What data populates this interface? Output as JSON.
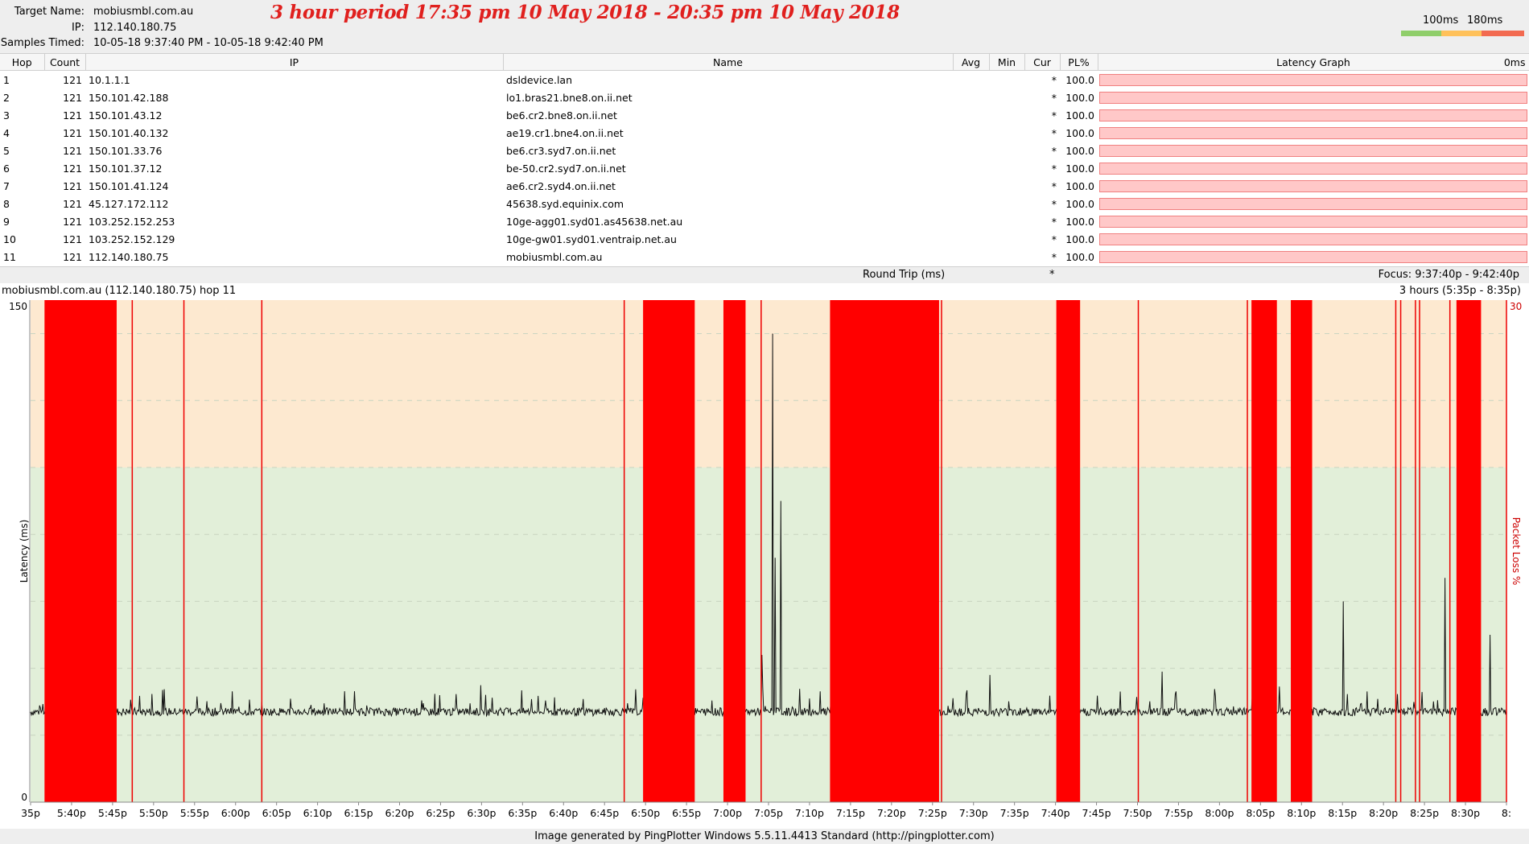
{
  "header": {
    "target_name_label": "Target Name:",
    "target_name": "mobiusmbl.com.au",
    "ip_label": "IP:",
    "ip": "112.140.180.75",
    "samples_label": "Samples Timed:",
    "samples": "10-05-18 9:37:40 PM - 10-05-18 9:42:40 PM",
    "period_title": "3 hour period 17:35 pm 10 May 2018 - 20:35 pm 10 May 2018",
    "legend_100": "100ms",
    "legend_180": "180ms",
    "colors": {
      "good": "#8fce6a",
      "warn": "#ffc15a",
      "bad": "#f26a50",
      "title": "#e0201e"
    }
  },
  "table": {
    "columns": [
      "Hop",
      "Count",
      "IP",
      "Name",
      "Avg",
      "Min",
      "Cur",
      "PL%",
      "Latency Graph",
      "0ms"
    ],
    "rows": [
      {
        "hop": "1",
        "count": "121",
        "ip": "10.1.1.1",
        "name": "dsldevice.lan",
        "avg": "",
        "min": "",
        "cur": "*",
        "pl": "100.0"
      },
      {
        "hop": "2",
        "count": "121",
        "ip": "150.101.42.188",
        "name": "lo1.bras21.bne8.on.ii.net",
        "avg": "",
        "min": "",
        "cur": "*",
        "pl": "100.0"
      },
      {
        "hop": "3",
        "count": "121",
        "ip": "150.101.43.12",
        "name": "be6.cr2.bne8.on.ii.net",
        "avg": "",
        "min": "",
        "cur": "*",
        "pl": "100.0"
      },
      {
        "hop": "4",
        "count": "121",
        "ip": "150.101.40.132",
        "name": "ae19.cr1.bne4.on.ii.net",
        "avg": "",
        "min": "",
        "cur": "*",
        "pl": "100.0"
      },
      {
        "hop": "5",
        "count": "121",
        "ip": "150.101.33.76",
        "name": "be6.cr3.syd7.on.ii.net",
        "avg": "",
        "min": "",
        "cur": "*",
        "pl": "100.0"
      },
      {
        "hop": "6",
        "count": "121",
        "ip": "150.101.37.12",
        "name": "be-50.cr2.syd7.on.ii.net",
        "avg": "",
        "min": "",
        "cur": "*",
        "pl": "100.0"
      },
      {
        "hop": "7",
        "count": "121",
        "ip": "150.101.41.124",
        "name": "ae6.cr2.syd4.on.ii.net",
        "avg": "",
        "min": "",
        "cur": "*",
        "pl": "100.0"
      },
      {
        "hop": "8",
        "count": "121",
        "ip": "45.127.172.112",
        "name": "45638.syd.equinix.com",
        "avg": "",
        "min": "",
        "cur": "*",
        "pl": "100.0"
      },
      {
        "hop": "9",
        "count": "121",
        "ip": "103.252.152.253",
        "name": "10ge-agg01.syd01.as45638.net.au",
        "avg": "",
        "min": "",
        "cur": "*",
        "pl": "100.0"
      },
      {
        "hop": "10",
        "count": "121",
        "ip": "103.252.152.129",
        "name": "10ge-gw01.syd01.ventraip.net.au",
        "avg": "",
        "min": "",
        "cur": "*",
        "pl": "100.0"
      },
      {
        "hop": "11",
        "count": "121",
        "ip": "112.140.180.75",
        "name": "mobiusmbl.com.au",
        "avg": "",
        "min": "",
        "cur": "*",
        "pl": "100.0"
      }
    ],
    "round_trip_label": "Round Trip (ms)",
    "round_trip_cur": "*",
    "focus": "Focus: 9:37:40p - 9:42:40p"
  },
  "graph": {
    "title": "mobiusmbl.com.au (112.140.180.75) hop 11",
    "range": "3 hours (5:35p - 8:35p)",
    "ylabel": "Latency (ms)",
    "y2label": "Packet Loss %",
    "y_top": "150",
    "y_bottom": "0",
    "y2_top": "30"
  },
  "chart_data": {
    "type": "line",
    "ylim": [
      0,
      150
    ],
    "y_ticks": [
      0,
      20,
      40,
      60,
      80,
      100,
      120,
      140,
      150
    ],
    "x_ticks": [
      "35p",
      "5:40p",
      "5:45p",
      "5:50p",
      "5:55p",
      "6:00p",
      "6:05p",
      "6:10p",
      "6:15p",
      "6:20p",
      "6:25p",
      "6:30p",
      "6:35p",
      "6:40p",
      "6:45p",
      "6:50p",
      "6:55p",
      "7:00p",
      "7:05p",
      "7:10p",
      "7:15p",
      "7:20p",
      "7:25p",
      "7:30p",
      "7:35p",
      "7:40p",
      "7:45p",
      "7:50p",
      "7:55p",
      "8:00p",
      "8:05p",
      "8:10p",
      "8:15p",
      "8:20p",
      "8:25p",
      "8:30p",
      "8:"
    ],
    "x_range_minutes": [
      0,
      180
    ],
    "zones": [
      {
        "from": 0,
        "to": 100,
        "color": "#e2efd9"
      },
      {
        "from": 100,
        "to": 150,
        "color": "#fde9d0"
      }
    ],
    "baseline_ms": 27,
    "loss_blocks_minutes": [
      [
        1.7,
        10.5
      ],
      [
        74.7,
        81.0
      ],
      [
        84.5,
        87.2
      ],
      [
        97.5,
        110.8
      ],
      [
        125.1,
        128.0
      ],
      [
        148.9,
        152.0
      ],
      [
        153.7,
        156.3
      ],
      [
        173.9,
        176.9
      ]
    ],
    "loss_lines_minutes": [
      12.4,
      18.7,
      28.2,
      72.4,
      89.1,
      111.1,
      135.1,
      148.4,
      166.5,
      167.1,
      168.9,
      169.4,
      173.1,
      180.0
    ],
    "spikes": [
      [
        90.5,
        140
      ],
      [
        91.5,
        90
      ],
      [
        90.8,
        73
      ],
      [
        89.2,
        44
      ],
      [
        160.1,
        60
      ],
      [
        172.5,
        67
      ],
      [
        178.0,
        50
      ],
      [
        138.0,
        39
      ],
      [
        105.0,
        33
      ],
      [
        117.0,
        38
      ]
    ]
  },
  "footer": "Image generated by PingPlotter Windows 5.5.11.4413 Standard (http://pingplotter.com)"
}
